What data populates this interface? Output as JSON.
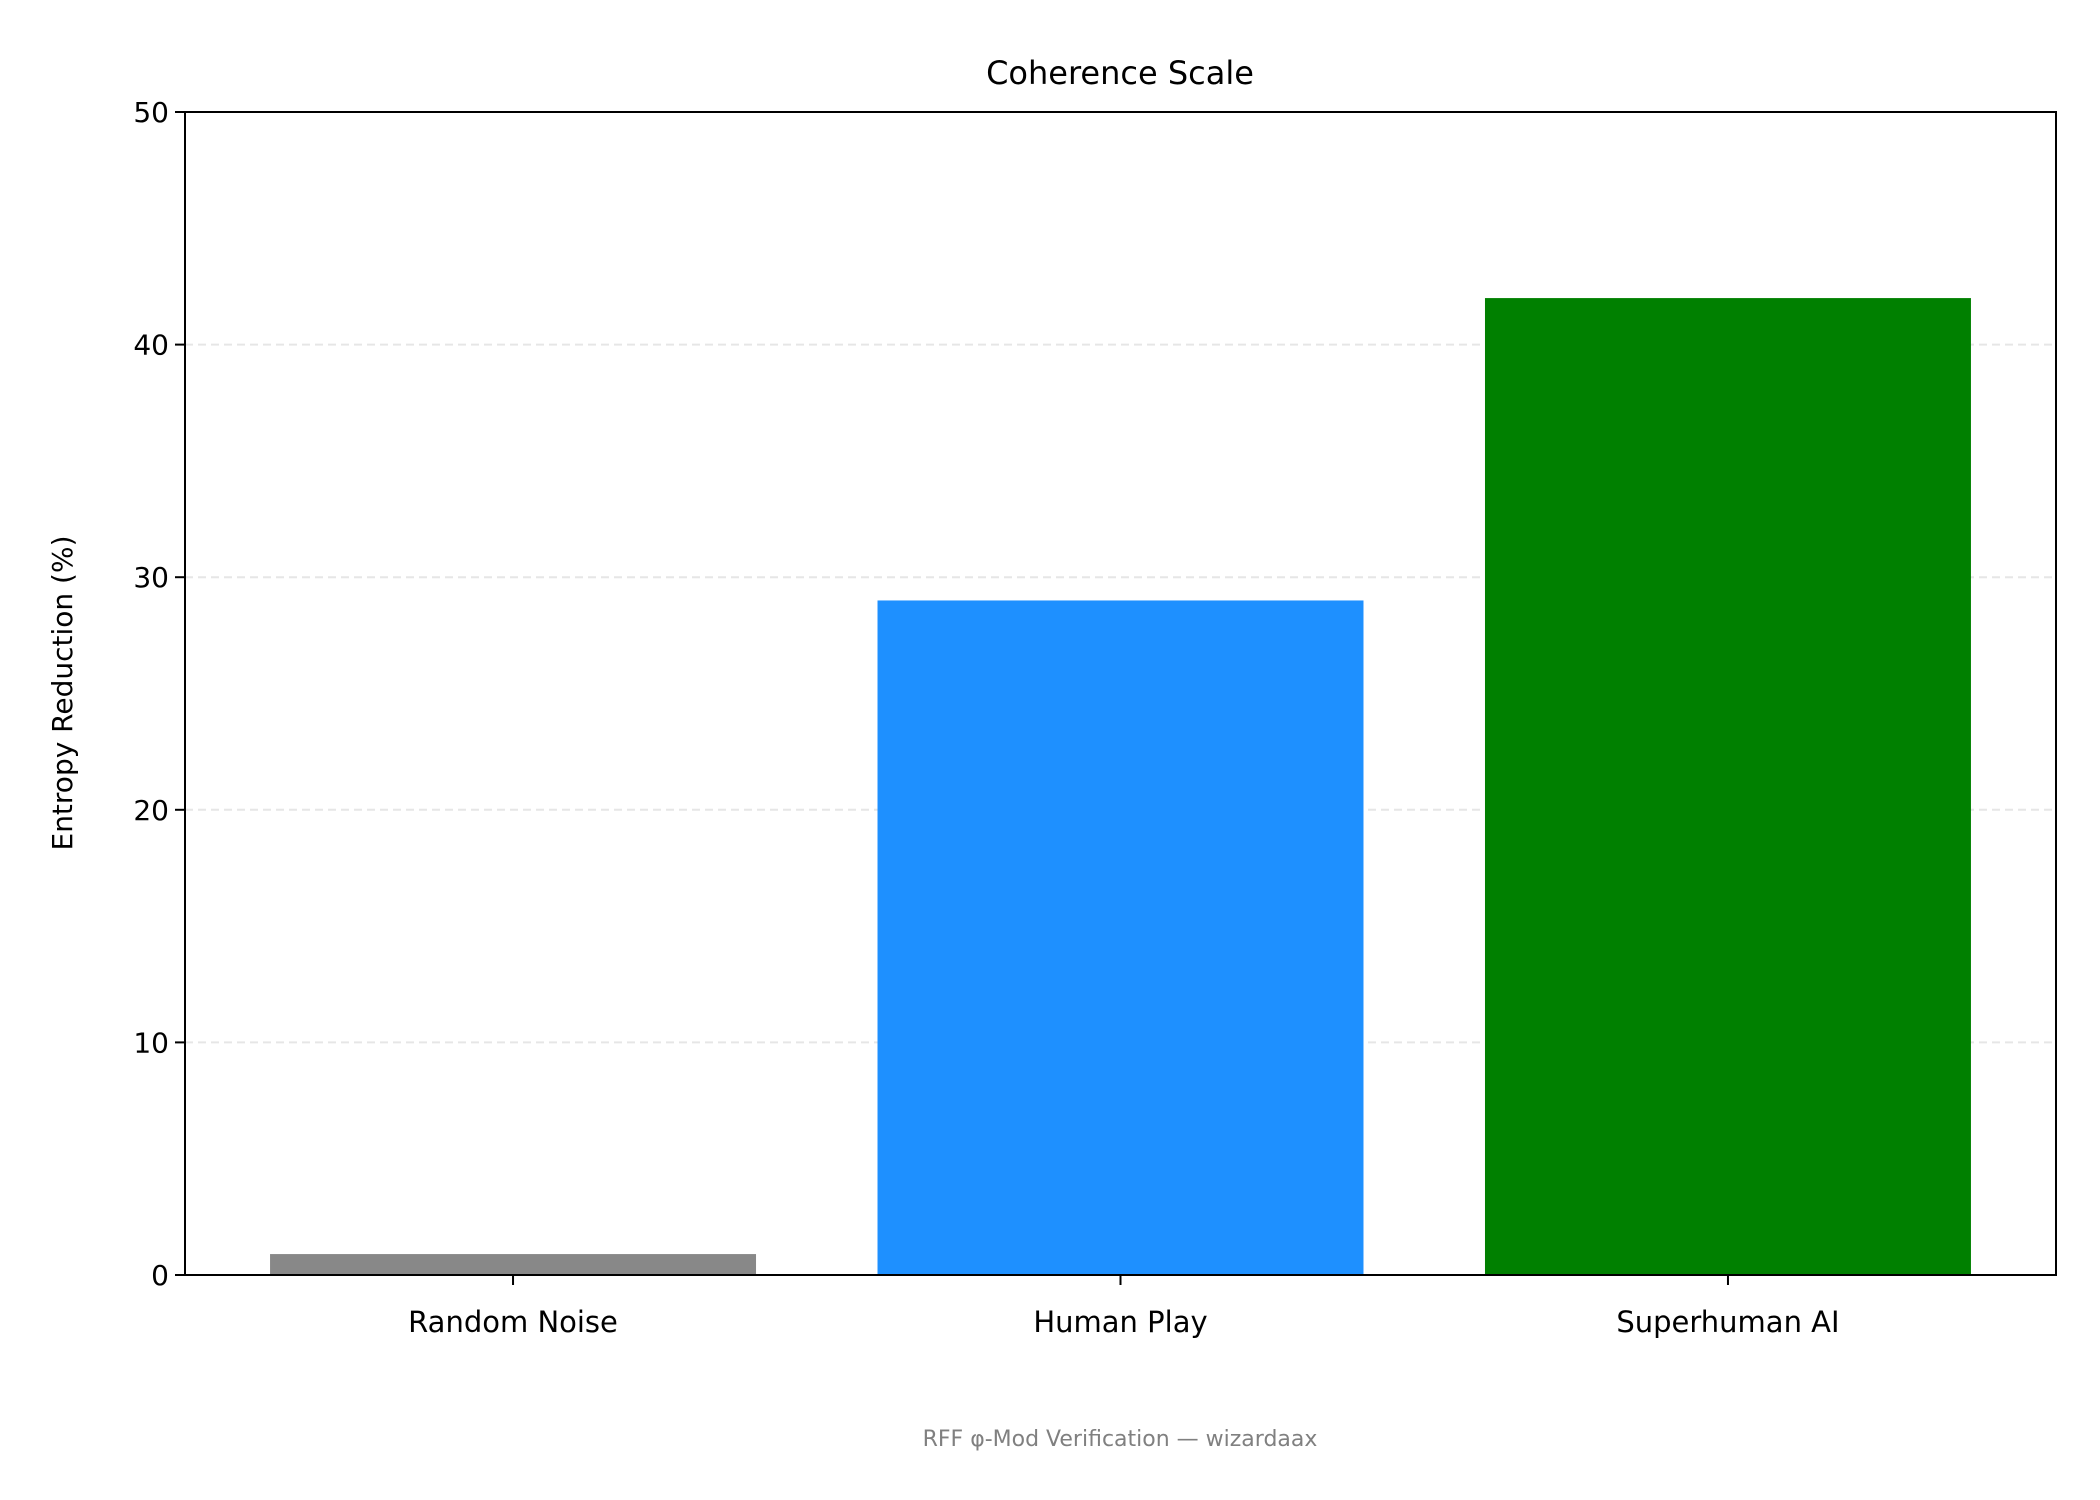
{
  "chart_data": {
    "type": "bar",
    "title": "Coherence Scale",
    "xlabel": "",
    "ylabel": "Entropy Reduction (%)",
    "categories": [
      "Random Noise",
      "Human Play",
      "Superhuman AI"
    ],
    "values": [
      0.9,
      29,
      42
    ],
    "colors": [
      "#888888",
      "#1E90FF",
      "#008000"
    ],
    "ylim": [
      0,
      50
    ],
    "yticks": [
      0,
      10,
      20,
      30,
      40,
      50
    ],
    "grid": {
      "axis": "y",
      "style": "dashed",
      "color": "#e6e6e6"
    },
    "footer": "RFF φ-Mod Verification — wizardaax"
  }
}
